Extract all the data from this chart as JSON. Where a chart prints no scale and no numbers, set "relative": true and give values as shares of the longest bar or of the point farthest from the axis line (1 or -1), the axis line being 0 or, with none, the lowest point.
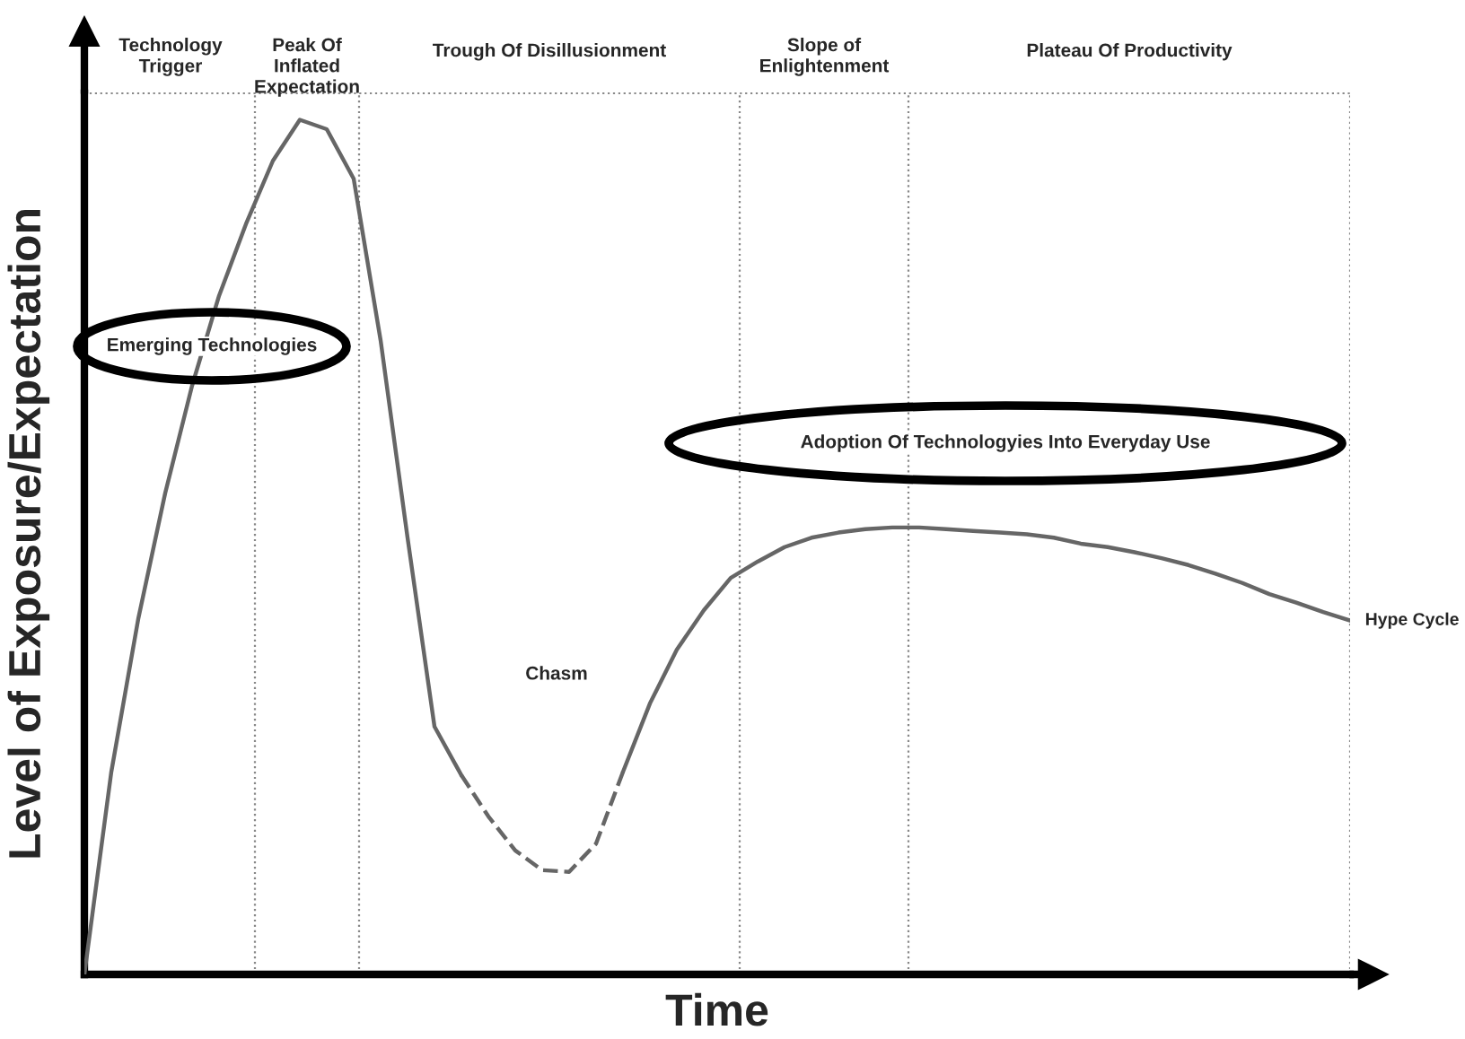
{
  "chart_data": {
    "type": "line",
    "relative": true,
    "xlabel": "Time",
    "ylabel": "Level of Exposure/Expectation",
    "categories": [
      null,
      null,
      null,
      null,
      null,
      null,
      null,
      null,
      null,
      null,
      null,
      null,
      null,
      null,
      null,
      null,
      null,
      null,
      null,
      null,
      null,
      null,
      null,
      null,
      null,
      null,
      null,
      null,
      null,
      null,
      null,
      null,
      null,
      null,
      null,
      null,
      null,
      null,
      null,
      null,
      null,
      null,
      null,
      null,
      null,
      null,
      null,
      null
    ],
    "series": [
      {
        "name": "Hype Cycle",
        "color": "#666666",
        "line_style": "solid",
        "values": [
          0,
          0.237,
          0.416,
          0.563,
          0.689,
          0.794,
          0.878,
          0.952,
          1,
          0.989,
          0.931,
          0.742,
          0.511,
          0.29,
          0.233,
          null,
          null,
          null,
          null,
          null,
          0.237,
          0.317,
          0.38,
          0.426,
          0.464,
          0.483,
          0.5,
          0.511,
          0.517,
          0.521,
          0.523,
          0.523,
          0.521,
          0.519,
          0.517,
          0.515,
          0.511,
          0.504,
          0.5,
          0.494,
          0.487,
          0.479,
          0.469,
          0.458,
          0.445,
          0.435,
          0.424,
          0.414
        ]
      },
      {
        "color": "#666666",
        "line_style": "dashed",
        "values": [
          null,
          null,
          null,
          null,
          null,
          null,
          null,
          null,
          null,
          null,
          null,
          null,
          null,
          null,
          0.233,
          0.185,
          0.145,
          0.122,
          0.12,
          0.153,
          0.237,
          null,
          null,
          null,
          null,
          null,
          null,
          null,
          null,
          null,
          null,
          null,
          null,
          null,
          null,
          null,
          null,
          null,
          null,
          null,
          null,
          null,
          null,
          null,
          null,
          null,
          null,
          null
        ]
      }
    ],
    "annotations": [
      "Emerging Technologies",
      "Adoption Of Technologyies Into Everyday Use",
      "Chasm",
      "Technology\nTrigger",
      "Peak Of\nInflated\nExpectation",
      "Trough Of Disillusionment",
      "Slope of\nEnlightenment",
      "Plateau Of Productivity"
    ],
    "grid": false,
    "legend": false,
    "marker": "none"
  }
}
